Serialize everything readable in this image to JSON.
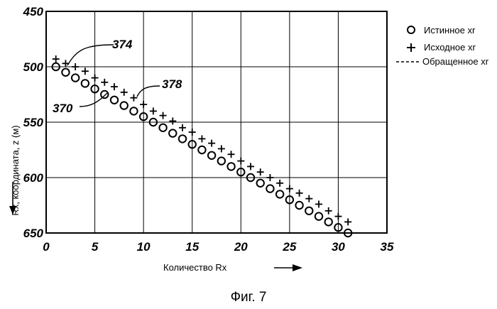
{
  "chart_data": {
    "type": "scatter",
    "xlabel": "Количество Rx",
    "ylabel": "Rx, координата, z (м)",
    "xlim": [
      0,
      35
    ],
    "ylim": [
      650,
      450
    ],
    "y_inverted": true,
    "grid": true,
    "x_ticks": [
      "0",
      "5",
      "10",
      "15",
      "20",
      "25",
      "30",
      "35"
    ],
    "y_ticks": [
      "450",
      "500",
      "550",
      "600",
      "650"
    ],
    "legend": {
      "placement": "right-outside-top",
      "entries": [
        {
          "marker": "○",
          "label": "Истинное xr"
        },
        {
          "marker": "+",
          "label": "Исходное xr"
        },
        {
          "marker": "-----",
          "label": "Обращенное xr"
        }
      ]
    },
    "series": [
      {
        "name": "Истинное xr",
        "marker": "circle",
        "x": [
          1,
          2,
          3,
          4,
          5,
          6,
          7,
          8,
          9,
          10,
          11,
          12,
          13,
          14,
          15,
          16,
          17,
          18,
          19,
          20,
          21,
          22,
          23,
          24,
          25,
          26,
          27,
          28,
          29,
          30,
          31
        ],
        "y": [
          500,
          505,
          510,
          515,
          520,
          525,
          530,
          535,
          540,
          545,
          550,
          555,
          560,
          565,
          570,
          575,
          580,
          585,
          590,
          595,
          600,
          605,
          610,
          615,
          620,
          625,
          630,
          635,
          640,
          645,
          650
        ]
      },
      {
        "name": "Исходное xr",
        "marker": "plus",
        "x": [
          1,
          2,
          3,
          4,
          5,
          6,
          7,
          8,
          9,
          10,
          11,
          12,
          13,
          14,
          15,
          16,
          17,
          18,
          19,
          20,
          21,
          22,
          23,
          24,
          25,
          26,
          27,
          28,
          29,
          30,
          31
        ],
        "y": [
          493,
          497,
          500,
          504,
          510,
          514,
          518,
          523,
          528,
          534,
          540,
          544,
          549,
          555,
          559,
          565,
          569,
          574,
          579,
          585,
          590,
          595,
          600,
          605,
          610,
          614,
          619,
          624,
          630,
          635,
          640
        ]
      }
    ],
    "annotations": [
      {
        "text": "374"
      },
      {
        "text": "378"
      },
      {
        "text": "370"
      }
    ]
  },
  "caption": "Фиг. 7",
  "arrow_glyph": "⟶"
}
